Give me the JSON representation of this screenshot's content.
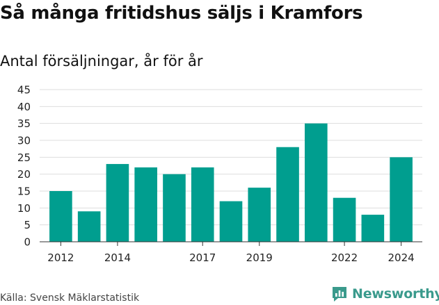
{
  "title": "Så många fritidshus säljs i Kramfors",
  "subtitle": "Antal försäljningar, år för år",
  "source": "Källa: Svensk Mäklarstatistik",
  "logo_text": "Newsworthy",
  "colors": {
    "bar": "#009e8f",
    "grid": "#dddddd",
    "logo": "#3a9a8c"
  },
  "chart_data": {
    "type": "bar",
    "title": "Så många fritidshus säljs i Kramfors",
    "subtitle": "Antal försäljningar, år för år",
    "categories": [
      2012,
      2013,
      2014,
      2015,
      2016,
      2017,
      2018,
      2019,
      2020,
      2021,
      2022,
      2023,
      2024
    ],
    "values": [
      15,
      9,
      23,
      22,
      20,
      22,
      12,
      16,
      28,
      35,
      13,
      8,
      25
    ],
    "x_tick_labels": [
      "2012",
      "2014",
      "2017",
      "2019",
      "2022",
      "2024"
    ],
    "y_ticks": [
      0,
      5,
      10,
      15,
      20,
      25,
      30,
      35,
      40,
      45
    ],
    "ylim": [
      0,
      45
    ],
    "grid": true,
    "legend": "none"
  }
}
